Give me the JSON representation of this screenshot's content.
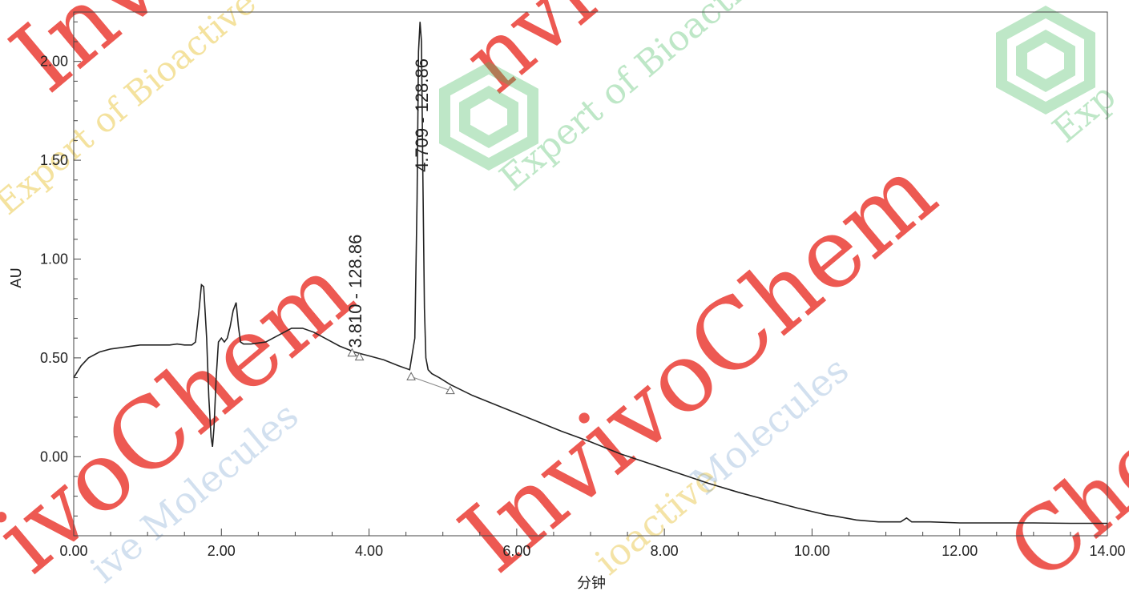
{
  "chart_data": {
    "type": "line",
    "xlabel": "分钟",
    "ylabel": "AU",
    "xlim": [
      0,
      14
    ],
    "ylim": [
      -0.4,
      2.25
    ],
    "x_ticks": [
      0,
      2,
      4,
      6,
      8,
      10,
      12,
      14
    ],
    "x_tick_labels": [
      "0.00",
      "2.00",
      "4.00",
      "6.00",
      "8.00",
      "10.00",
      "12.00",
      "14.00"
    ],
    "y_ticks": [
      0,
      0.5,
      1,
      1.5,
      2
    ],
    "y_tick_labels": [
      "0.00",
      "0.50",
      "1.00",
      "1.50",
      "2.00"
    ],
    "grid": false,
    "series": [
      {
        "x": [
          0.0,
          0.1,
          0.2,
          0.35,
          0.5,
          0.7,
          0.9,
          1.1,
          1.3,
          1.4,
          1.5,
          1.6,
          1.65,
          1.7,
          1.73,
          1.76,
          1.8,
          1.83,
          1.86,
          1.88,
          1.9,
          1.93,
          1.96,
          2.0,
          2.04,
          2.08,
          2.12,
          2.16,
          2.2,
          2.23,
          2.26,
          2.3,
          2.4,
          2.6,
          2.8,
          2.95,
          3.1,
          3.25,
          3.4,
          3.6,
          3.8,
          3.9,
          4.0,
          4.2,
          4.4,
          4.55,
          4.62,
          4.65,
          4.67,
          4.69,
          4.71,
          4.73,
          4.75,
          4.77,
          4.8,
          4.85,
          4.95,
          5.1,
          5.4,
          5.8,
          6.2,
          6.6,
          7.0,
          7.4,
          7.8,
          8.2,
          8.6,
          9.0,
          9.4,
          9.8,
          10.2,
          10.3,
          10.6,
          10.9,
          11.2,
          11.28,
          11.35,
          11.6,
          12.0,
          12.5,
          13.0,
          13.5,
          14.0
        ],
        "y": [
          0.4,
          0.46,
          0.5,
          0.53,
          0.545,
          0.555,
          0.565,
          0.565,
          0.565,
          0.57,
          0.565,
          0.565,
          0.58,
          0.75,
          0.87,
          0.86,
          0.6,
          0.3,
          0.1,
          0.05,
          0.15,
          0.4,
          0.58,
          0.6,
          0.58,
          0.6,
          0.66,
          0.74,
          0.78,
          0.66,
          0.58,
          0.57,
          0.57,
          0.58,
          0.62,
          0.65,
          0.65,
          0.63,
          0.6,
          0.56,
          0.53,
          0.52,
          0.51,
          0.49,
          0.46,
          0.44,
          0.6,
          1.3,
          2.05,
          2.2,
          2.1,
          1.4,
          0.75,
          0.5,
          0.44,
          0.42,
          0.4,
          0.365,
          0.31,
          0.25,
          0.19,
          0.13,
          0.075,
          0.015,
          -0.035,
          -0.085,
          -0.135,
          -0.18,
          -0.22,
          -0.26,
          -0.295,
          -0.3,
          -0.32,
          -0.33,
          -0.33,
          -0.31,
          -0.33,
          -0.33,
          -0.335,
          -0.335,
          -0.335,
          -0.337,
          -0.337
        ]
      }
    ],
    "baseline_segments": [
      {
        "x": [
          3.77,
          3.87
        ],
        "y": [
          0.525,
          0.505
        ]
      },
      {
        "x": [
          4.57,
          5.1
        ],
        "y": [
          0.405,
          0.335
        ]
      }
    ],
    "peak_markers": [
      {
        "x": 3.77,
        "y": 0.525
      },
      {
        "x": 3.87,
        "y": 0.505
      },
      {
        "x": 4.57,
        "y": 0.405
      },
      {
        "x": 5.1,
        "y": 0.335
      }
    ],
    "annotations": [
      {
        "text": "3.810 - 128.86",
        "x": 3.81,
        "y": 0.55
      },
      {
        "text": "4.709 - 128.86",
        "x": 4.709,
        "y": 1.44
      }
    ],
    "colors": {
      "trace": "#222222",
      "axis": "#444444",
      "watermark_red": "#e8261c",
      "watermark_green": "#2fb24a",
      "watermark_blue": "#5a8fc8",
      "watermark_yellow": "#e7c23a"
    }
  },
  "watermark": {
    "brand": "InvivoChem",
    "brand_fragments": [
      "Inv",
      "nvivo",
      "ivoChem",
      "InvivoChem",
      "Chem"
    ],
    "tagline_a": "Expert of Bioactive",
    "tagline_b": "ive Molecules",
    "tagline_c": "Molecules",
    "tagline_d": "Exp",
    "tagline_e": "ioactive"
  }
}
